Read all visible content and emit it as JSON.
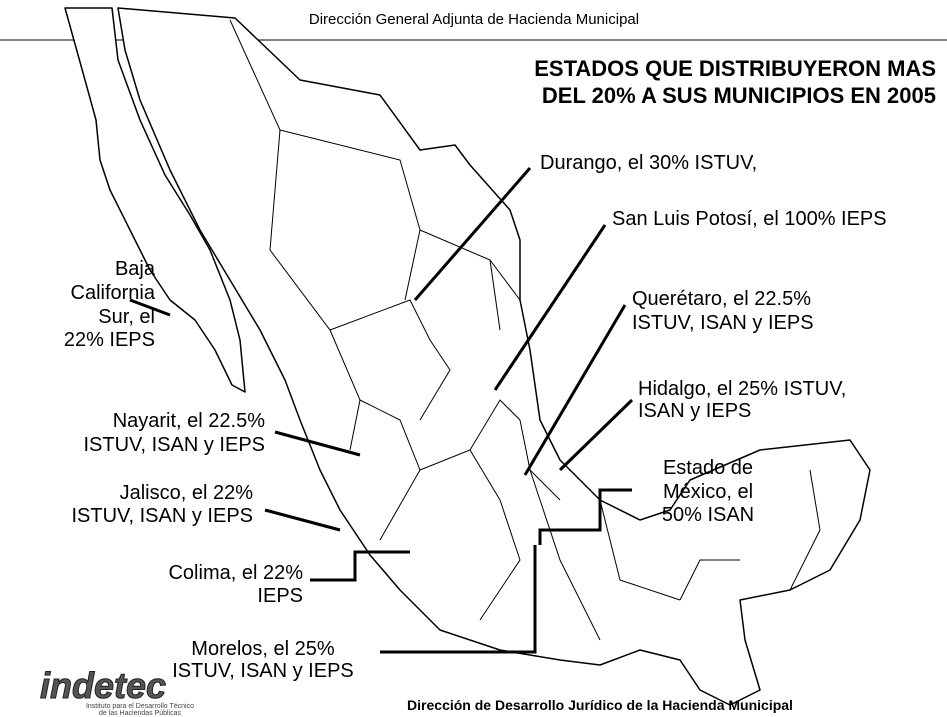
{
  "header": {
    "text": "Dirección General Adjunta de Hacienda Municipal"
  },
  "title": {
    "lines": [
      "ESTADOS QUE DISTRIBUYERON MAS",
      "DEL 20% A SUS MUNICIPIOS EN 2005"
    ]
  },
  "labels": [
    {
      "lines": [
        "Durango, el 30% ISTUV,"
      ]
    },
    {
      "lines": [
        "San Luis Potosí, el 100% IEPS"
      ]
    },
    {
      "lines": [
        "Querétaro, el 22.5%",
        "ISTUV, ISAN y IEPS"
      ]
    },
    {
      "lines": [
        "Hidalgo, el 25% ISTUV,",
        "ISAN y IEPS"
      ]
    },
    {
      "lines": [
        "Estado de",
        "México, el",
        "50% ISAN"
      ]
    },
    {
      "lines": [
        "Baja",
        "California",
        "Sur, el",
        "22% IEPS"
      ]
    },
    {
      "lines": [
        "Nayarit, el 22.5%",
        "ISTUV, ISAN y IEPS"
      ]
    },
    {
      "lines": [
        "Jalisco, el 22%",
        "ISTUV, ISAN y IEPS"
      ]
    },
    {
      "lines": [
        "Colima, el 22%",
        "IEPS"
      ]
    },
    {
      "lines": [
        "Morelos, el 25%",
        "ISTUV, ISAN y IEPS"
      ]
    }
  ],
  "footer": {
    "text": "Dirección de Desarrollo Jurídico de la Hacienda Municipal"
  },
  "logo": {
    "name": "indetec",
    "subtitle": [
      "Instituto para el Desarrollo Técnico",
      "de las Haciendas Públicas"
    ]
  }
}
